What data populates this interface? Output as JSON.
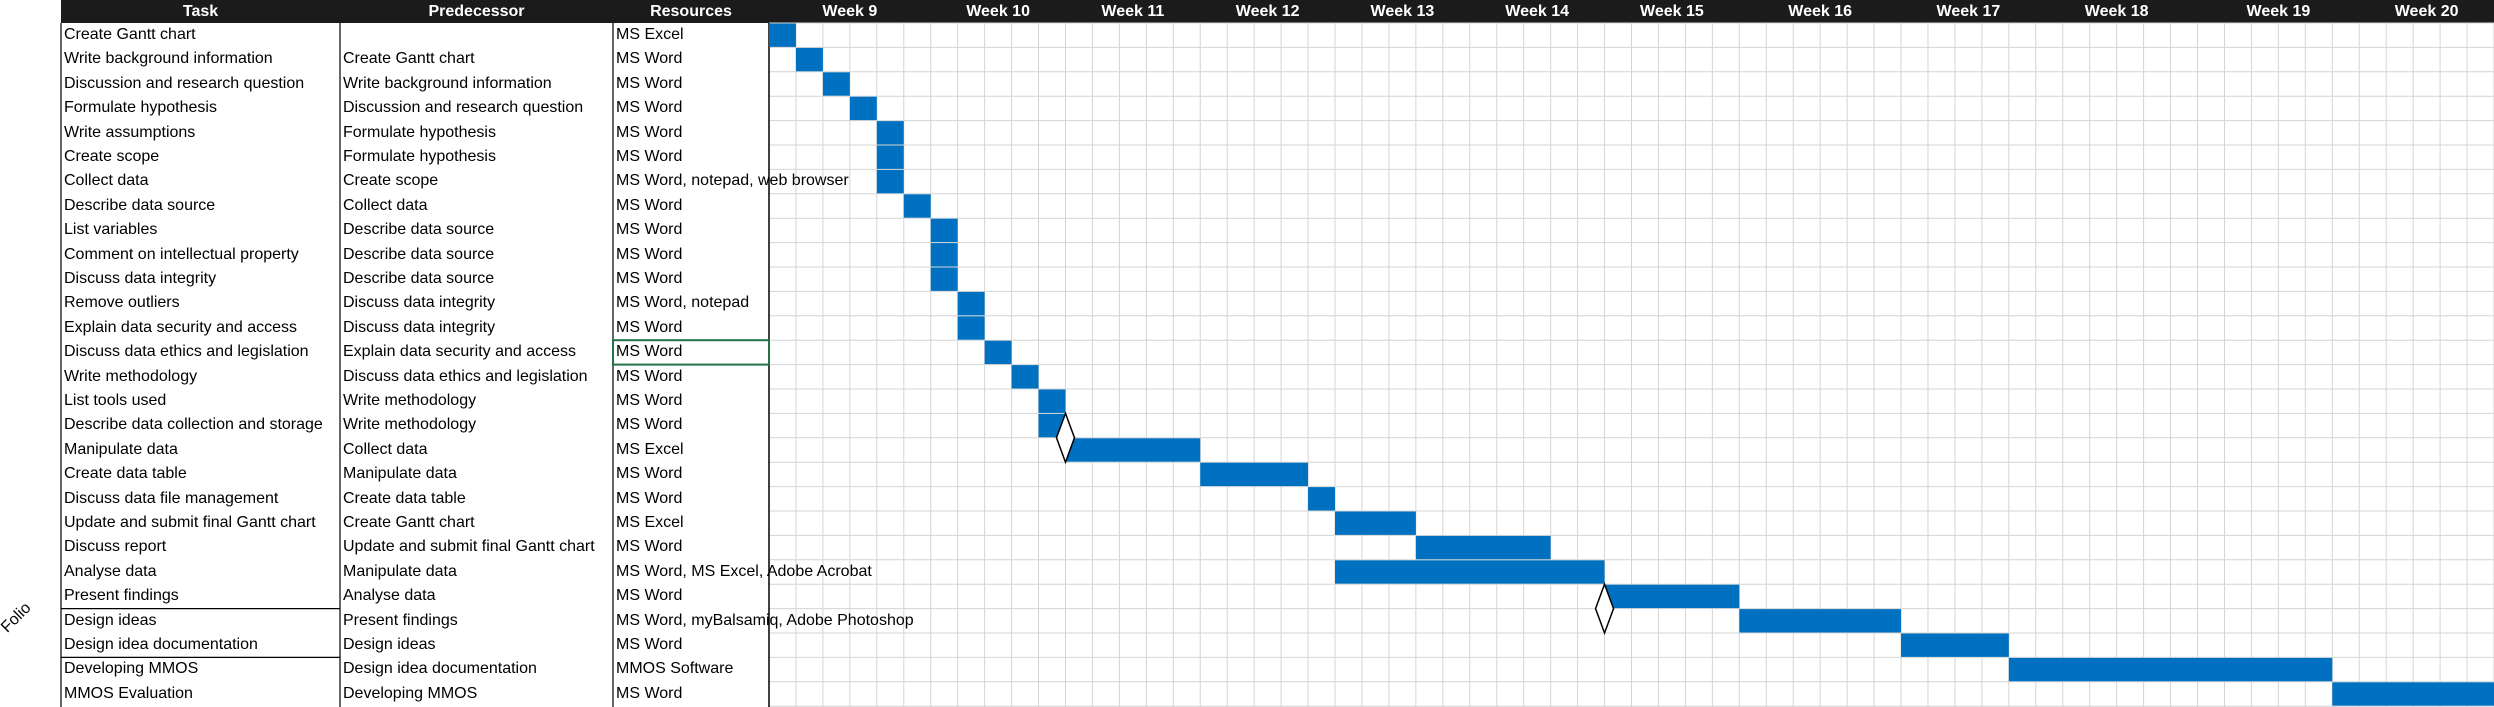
{
  "side_label": "Folio",
  "columns": {
    "task": "Task",
    "predecessor": "Predecessor",
    "resources": "Resources"
  },
  "weeks": [
    "Week 9",
    "Week 10",
    "Week 11",
    "Week 12",
    "Week 13",
    "Week 14",
    "Week 15",
    "Week 16",
    "Week 17",
    "Week 18",
    "Week 19",
    "Week 20"
  ],
  "selected_row": 13,
  "colors": {
    "bar": "#0070c0",
    "header": "#1b1b1b",
    "grid": "#d4d4d4",
    "selection": "#217346"
  },
  "tasks": [
    {
      "task": "Create Gantt chart",
      "predecessor": "",
      "resources": "MS Excel"
    },
    {
      "task": "Write background information",
      "predecessor": "Create Gantt chart",
      "resources": "MS Word"
    },
    {
      "task": "Discussion and research question",
      "predecessor": "Write background information",
      "resources": "MS Word"
    },
    {
      "task": "Formulate hypothesis",
      "predecessor": "Discussion and research question",
      "resources": "MS Word"
    },
    {
      "task": "Write assumptions",
      "predecessor": "Formulate hypothesis",
      "resources": "MS Word"
    },
    {
      "task": "Create scope",
      "predecessor": "Formulate hypothesis",
      "resources": "MS Word"
    },
    {
      "task": "Collect data",
      "predecessor": "Create scope",
      "resources": "MS Word, notepad, web browser"
    },
    {
      "task": "Describe data source",
      "predecessor": "Collect data",
      "resources": "MS Word"
    },
    {
      "task": "List variables",
      "predecessor": "Describe data source",
      "resources": "MS Word"
    },
    {
      "task": "Comment on intellectual property",
      "predecessor": "Describe data source",
      "resources": "MS Word"
    },
    {
      "task": "Discuss data integrity",
      "predecessor": "Describe data source",
      "resources": "MS Word"
    },
    {
      "task": "Remove outliers",
      "predecessor": "Discuss data integrity",
      "resources": "MS Word, notepad"
    },
    {
      "task": "Explain data security and access",
      "predecessor": "Discuss data integrity",
      "resources": "MS Word"
    },
    {
      "task": "Discuss data ethics and legislation",
      "predecessor": "Explain data security and access",
      "resources": "MS Word"
    },
    {
      "task": "Write methodology",
      "predecessor": "Discuss data ethics and legislation",
      "resources": "MS Word"
    },
    {
      "task": "List tools used",
      "predecessor": "Write methodology",
      "resources": "MS Word"
    },
    {
      "task": "Describe data collection and storage",
      "predecessor": "Write methodology",
      "resources": "MS Word"
    },
    {
      "task": "Manipulate data",
      "predecessor": "Collect data",
      "resources": "MS Excel"
    },
    {
      "task": "Create data table",
      "predecessor": "Manipulate data",
      "resources": "MS Word"
    },
    {
      "task": "Discuss data file management",
      "predecessor": "Create data table",
      "resources": "MS Word"
    },
    {
      "task": "Update and submit final Gantt chart",
      "predecessor": "Create Gantt chart",
      "resources": "MS Excel"
    },
    {
      "task": "Discuss report",
      "predecessor": "Update and submit final Gantt chart",
      "resources": "MS Word"
    },
    {
      "task": "Analyse data",
      "predecessor": "Manipulate data",
      "resources": "MS Word, MS Excel, Adobe Acrobat"
    },
    {
      "task": "Present findings",
      "predecessor": "Analyse data",
      "resources": "MS Word"
    },
    {
      "task": "Design ideas",
      "predecessor": "Present findings",
      "resources": "MS Word, myBalsamiq, Adobe Photoshop"
    },
    {
      "task": "Design idea documentation",
      "predecessor": "Design ideas",
      "resources": "MS Word"
    },
    {
      "task": "Developing MMOS",
      "predecessor": "Design idea documentation",
      "resources": "MMOS Software"
    },
    {
      "task": "MMOS Evaluation",
      "predecessor": "Developing MMOS",
      "resources": "MS Word"
    }
  ],
  "bars": [
    {
      "row": 0,
      "start": 0,
      "span": 1
    },
    {
      "row": 1,
      "start": 1,
      "span": 1
    },
    {
      "row": 2,
      "start": 2,
      "span": 1
    },
    {
      "row": 3,
      "start": 3,
      "span": 1
    },
    {
      "row": 4,
      "start": 4,
      "span": 1
    },
    {
      "row": 5,
      "start": 4,
      "span": 1
    },
    {
      "row": 6,
      "start": 4,
      "span": 1
    },
    {
      "row": 7,
      "start": 5,
      "span": 1
    },
    {
      "row": 8,
      "start": 6,
      "span": 1
    },
    {
      "row": 9,
      "start": 6,
      "span": 1
    },
    {
      "row": 10,
      "start": 6,
      "span": 1
    },
    {
      "row": 11,
      "start": 7,
      "span": 1
    },
    {
      "row": 12,
      "start": 7,
      "span": 1
    },
    {
      "row": 13,
      "start": 8,
      "span": 1
    },
    {
      "row": 14,
      "start": 9,
      "span": 1
    },
    {
      "row": 15,
      "start": 10,
      "span": 1
    },
    {
      "row": 16,
      "start": 10,
      "span": 1
    },
    {
      "row": 17,
      "start": 11,
      "span": 5
    },
    {
      "row": 18,
      "start": 16,
      "span": 4
    },
    {
      "row": 19,
      "start": 20,
      "span": 1
    },
    {
      "row": 20,
      "start": 21,
      "span": 3
    },
    {
      "row": 21,
      "start": 24,
      "span": 5
    },
    {
      "row": 22,
      "start": 21,
      "span": 10
    },
    {
      "row": 23,
      "start": 31,
      "span": 5
    },
    {
      "row": 24,
      "start": 36,
      "span": 6
    },
    {
      "row": 25,
      "start": 42,
      "span": 4
    },
    {
      "row": 26,
      "start": 46,
      "span": 12
    },
    {
      "row": 27,
      "start": 58,
      "span": 6
    }
  ],
  "milestones": [
    {
      "row": 16,
      "col": 11
    },
    {
      "row": 23,
      "col": 31
    }
  ]
}
